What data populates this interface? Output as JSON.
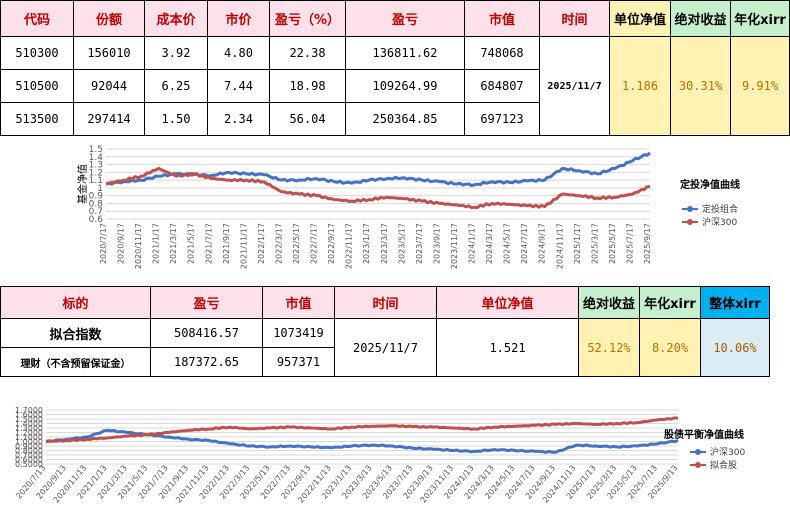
{
  "table1": {
    "headers": [
      "代码",
      "份额",
      "成本价",
      "市价",
      "盈亏（%）",
      "盈亏",
      "市值",
      "时间",
      "单位净值",
      "绝对收益",
      "年化xirr"
    ],
    "rows": [
      [
        "510300",
        "156010",
        "3.92",
        "4.80",
        "22.38",
        "136811.62",
        "748068"
      ],
      [
        "510500",
        "92044",
        "6.25",
        "7.44",
        "18.98",
        "109264.99",
        "684807"
      ],
      [
        "513500",
        "297414",
        "1.50",
        "2.34",
        "56.04",
        "250364.85",
        "697123"
      ]
    ],
    "time": "2025/11/7",
    "unit_nav": "1.186",
    "abs_return": "30.31%",
    "xirr": "9.91%"
  },
  "table2": {
    "headers": [
      "标的",
      "盈亏",
      "市值",
      "时间",
      "单位净值",
      "绝对收益",
      "年化xirr",
      "整体xirr"
    ],
    "rows": [
      [
        "拟合指数",
        "508416.57",
        "1073419"
      ],
      [
        "理财（不含预留保证金）",
        "187372.65",
        "957371"
      ]
    ],
    "time": "2025/11/7",
    "unit_nav": "1.521",
    "abs_return": "52.12%",
    "xirr": "8.20%",
    "overall_xirr": "10.06%"
  },
  "colors": {
    "blue": "#4472c4",
    "red": "#c0504d",
    "header_bg": "#fde1ea",
    "header_text": "#c00000",
    "yellow": "#fff2b3",
    "green": "#c6efce",
    "cyan": "#00b0f0"
  },
  "chart_data": [
    {
      "type": "line",
      "title": "定投净值曲线",
      "ylabel": "基金净值",
      "ylim": [
        0.6,
        1.5
      ],
      "yticks": [
        "1.5",
        "1.4",
        "1.3",
        "1.2",
        "1.1",
        "1",
        "0.9",
        "0.8",
        "0.7",
        "0.6"
      ],
      "categories": [
        "2020/7/17",
        "2020/9/17",
        "2020/11/17",
        "2021/1/17",
        "2021/3/17",
        "2021/5/17",
        "2021/7/17",
        "2021/9/17",
        "2021/11/17",
        "2022/1/17",
        "2022/3/17",
        "2022/5/17",
        "2022/7/17",
        "2022/9/17",
        "2022/11/17",
        "2023/1/17",
        "2023/3/17",
        "2023/5/17",
        "2023/7/17",
        "2023/9/17",
        "2023/11/17",
        "2024/1/17",
        "2024/3/17",
        "2024/5/17",
        "2024/7/17",
        "2024/9/17",
        "2024/11/17",
        "2025/1/17",
        "2025/3/17",
        "2025/5/17",
        "2025/7/17",
        "2025/9/17"
      ],
      "series": [
        {
          "name": "定投组合",
          "color": "#4472c4",
          "values": [
            1.05,
            1.08,
            1.1,
            1.15,
            1.18,
            1.17,
            1.16,
            1.2,
            1.18,
            1.17,
            1.1,
            1.1,
            1.12,
            1.08,
            1.06,
            1.1,
            1.12,
            1.13,
            1.1,
            1.08,
            1.05,
            1.04,
            1.08,
            1.07,
            1.09,
            1.1,
            1.25,
            1.22,
            1.18,
            1.25,
            1.35,
            1.45
          ]
        },
        {
          "name": "沪深300",
          "color": "#c0504d",
          "values": [
            1.05,
            1.1,
            1.15,
            1.25,
            1.15,
            1.18,
            1.12,
            1.1,
            1.1,
            1.08,
            0.95,
            0.92,
            0.9,
            0.85,
            0.83,
            0.85,
            0.88,
            0.86,
            0.83,
            0.8,
            0.78,
            0.75,
            0.8,
            0.79,
            0.77,
            0.76,
            0.92,
            0.9,
            0.87,
            0.88,
            0.92,
            1.02
          ]
        }
      ],
      "legend": "right"
    },
    {
      "type": "line",
      "title": "股债平衡净值曲线",
      "ylim": [
        0.5,
        1.7
      ],
      "yticks": [
        "1.7000",
        "1.6000",
        "1.5000",
        "1.4000",
        "1.3000",
        "1.2000",
        "1.1000",
        "1.0000",
        "0.9000",
        "0.8000",
        "0.7000",
        "0.6000",
        "0.5000"
      ],
      "categories": [
        "2020/7/13",
        "2020/9/13",
        "2020/11/13",
        "2021/1/13",
        "2021/3/13",
        "2021/5/13",
        "2021/7/13",
        "2021/9/13",
        "2021/11/13",
        "2022/1/13",
        "2022/3/13",
        "2022/5/13",
        "2022/7/13",
        "2022/9/13",
        "2022/11/13",
        "2023/1/13",
        "2023/3/13",
        "2023/5/13",
        "2023/7/13",
        "2023/9/13",
        "2023/11/13",
        "2024/1/13",
        "2024/3/13",
        "2024/5/13",
        "2024/7/13",
        "2024/9/13",
        "2024/11/13",
        "2025/1/13",
        "2025/3/13",
        "2025/5/13",
        "2025/7/13",
        "2025/9/13"
      ],
      "series": [
        {
          "name": "沪深300",
          "color": "#4472c4",
          "values": [
            1.0,
            1.05,
            1.1,
            1.25,
            1.2,
            1.15,
            1.1,
            1.05,
            1.02,
            0.95,
            0.9,
            0.88,
            0.9,
            0.88,
            0.86,
            0.9,
            0.92,
            0.9,
            0.85,
            0.83,
            0.8,
            0.78,
            0.82,
            0.8,
            0.78,
            0.76,
            0.92,
            0.9,
            0.88,
            0.9,
            0.95,
            1.02
          ]
        },
        {
          "name": "拟合股",
          "color": "#c0504d",
          "values": [
            1.0,
            1.02,
            1.05,
            1.08,
            1.12,
            1.15,
            1.2,
            1.25,
            1.28,
            1.32,
            1.28,
            1.3,
            1.32,
            1.3,
            1.28,
            1.32,
            1.34,
            1.35,
            1.33,
            1.32,
            1.3,
            1.28,
            1.32,
            1.34,
            1.36,
            1.38,
            1.4,
            1.38,
            1.4,
            1.42,
            1.48,
            1.52
          ]
        }
      ],
      "legend": "right"
    }
  ]
}
